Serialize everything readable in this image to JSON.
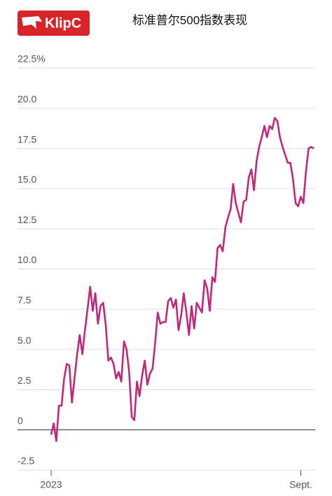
{
  "brand": "KlipC",
  "chart_data": {
    "type": "line",
    "title": "标准普尔500指数表现",
    "categories": [
      "2023",
      null,
      null,
      null,
      null,
      null,
      null,
      null,
      null,
      null,
      null,
      null,
      null,
      null,
      null,
      null,
      null,
      null,
      null,
      null,
      null,
      null,
      null,
      null,
      null,
      null,
      null,
      null,
      null,
      null,
      null,
      null,
      null,
      null,
      null,
      null,
      null,
      null,
      null,
      null,
      null,
      null,
      null,
      null,
      null,
      null,
      null,
      null,
      null,
      null,
      null,
      null,
      null,
      null,
      null,
      null,
      null,
      null,
      null,
      null,
      null,
      null,
      null,
      null,
      null,
      null,
      null,
      null,
      null,
      null,
      null,
      null,
      null,
      null,
      null,
      null,
      null,
      null,
      null,
      null,
      null,
      null,
      null,
      null,
      null,
      null,
      null,
      null,
      null,
      null,
      null,
      null,
      null,
      null,
      null,
      null,
      "Sept.",
      null,
      null,
      null,
      null,
      null
    ],
    "series": [
      {
        "color": "#c0287a",
        "values": [
          -0.3,
          0.4,
          -0.7,
          1.5,
          1.5,
          3.2,
          4.1,
          4.0,
          1.7,
          3.2,
          4.7,
          5.9,
          4.7,
          6.2,
          7.5,
          8.9,
          7.4,
          8.5,
          6.6,
          7.7,
          7.9,
          6.5,
          4.3,
          4.5,
          4.1,
          3.2,
          3.6,
          3.0,
          5.5,
          5.0,
          3.6,
          0.8,
          0.6,
          3.0,
          2.1,
          3.4,
          4.3,
          2.8,
          3.5,
          3.8,
          5.4,
          7.3,
          6.6,
          6.7,
          6.7,
          8.0,
          8.2,
          7.6,
          8.1,
          6.2,
          7.1,
          8.5,
          7.3,
          5.9,
          7.7,
          6.3,
          7.9,
          7.6,
          7.3,
          9.3,
          8.8,
          7.4,
          9.5,
          9.2,
          11.3,
          11.5,
          11.1,
          12.6,
          13.2,
          13.7,
          15.3,
          14.1,
          13.5,
          12.9,
          14.2,
          14.3,
          15.7,
          16.2,
          14.9,
          16.7,
          17.6,
          18.2,
          18.9,
          18.2,
          18.9,
          18.7,
          19.4,
          19.2,
          18.2,
          17.6,
          17.1,
          16.6,
          16.6,
          15.6,
          14.1,
          13.9,
          14.5,
          14.1,
          16.1,
          17.5,
          17.6,
          17.5
        ]
      }
    ],
    "ylim": [
      -2.5,
      22.5
    ],
    "yticks": [
      {
        "value": -2.5,
        "label": "-2.5"
      },
      0,
      2.5,
      {
        "value": 5,
        "label": "5.0"
      },
      7.5,
      {
        "value": 10,
        "label": "10.0"
      },
      12.5,
      {
        "value": 15,
        "label": "15.0"
      },
      17.5,
      {
        "value": 20,
        "label": "20.0"
      },
      {
        "value": 22.5,
        "label": "22.5%"
      }
    ],
    "grid": true
  }
}
